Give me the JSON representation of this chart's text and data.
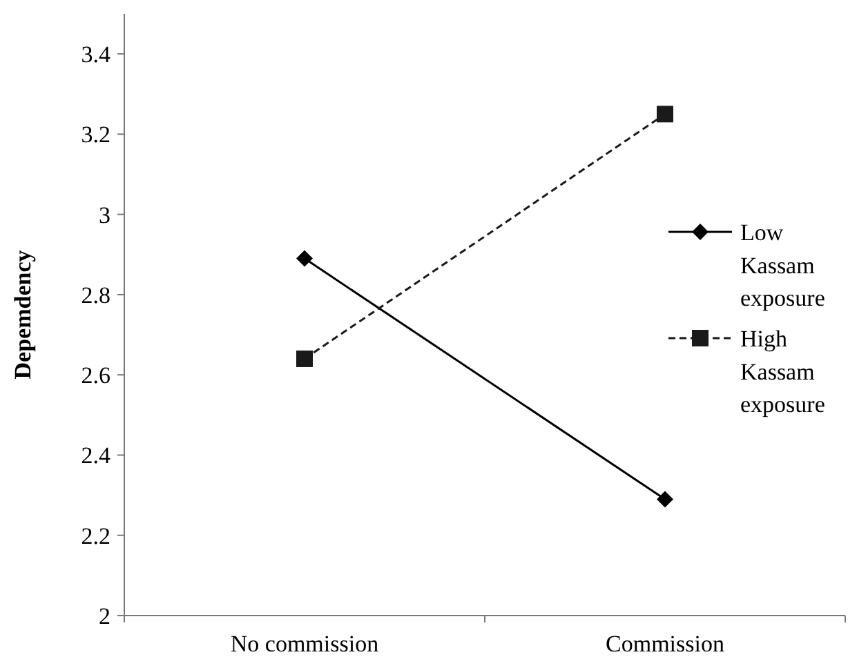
{
  "chart_data": {
    "type": "line",
    "ylabel": "Depemdency",
    "categories": [
      "No commission",
      "Commission"
    ],
    "series": [
      {
        "name": "Low Kassam exposure",
        "color": "#000000",
        "values": [
          2.89,
          2.29
        ],
        "marker": "diamond",
        "line_style": "solid"
      },
      {
        "name": "High Kassam exposure",
        "color": "#1a1a1a",
        "values": [
          2.64,
          3.25
        ],
        "marker": "square",
        "line_style": "dashed"
      }
    ],
    "ylim": [
      2,
      3.5
    ],
    "yticks": [
      2,
      2.2,
      2.4,
      2.6,
      2.8,
      3,
      3.2,
      3.4
    ],
    "grid": false,
    "legend": "right"
  }
}
